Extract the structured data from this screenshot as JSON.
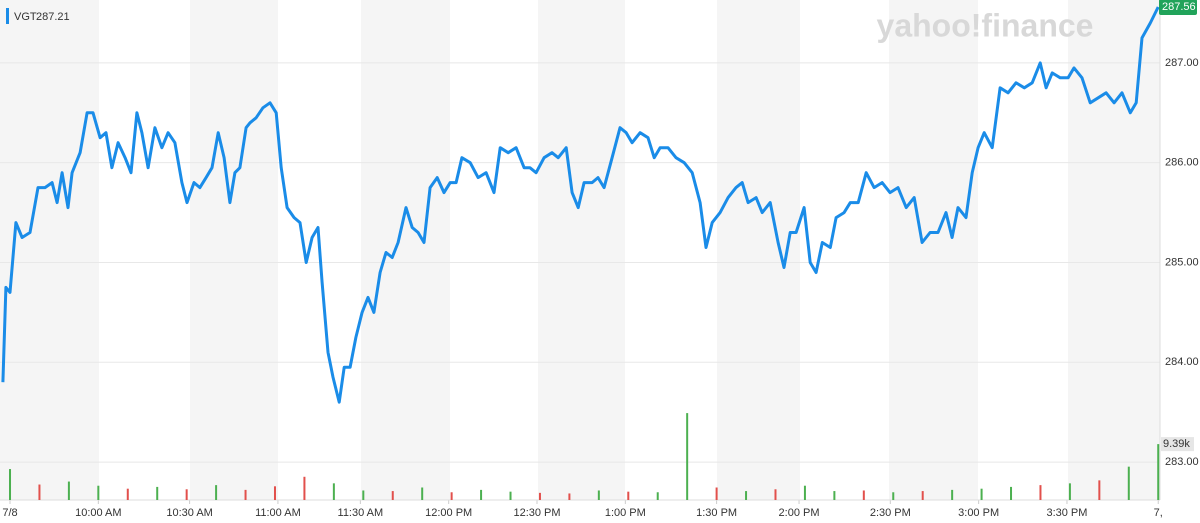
{
  "chart_data": {
    "type": "line",
    "watermark": "yahoo!finance",
    "legend_value": 287.21,
    "xlim": [
      -3.4,
      390.6
    ],
    "ylim": [
      282.62,
      287.63
    ],
    "xticks": [
      {
        "value": 0,
        "label": "7/8"
      },
      {
        "value": 30,
        "label": "10:00 AM"
      },
      {
        "value": 61,
        "label": "10:30 AM"
      },
      {
        "value": 91,
        "label": "11:00 AM"
      },
      {
        "value": 119,
        "label": "11:30 AM"
      },
      {
        "value": 149,
        "label": "12:00 PM"
      },
      {
        "value": 179,
        "label": "12:30 PM"
      },
      {
        "value": 209,
        "label": "1:00 PM"
      },
      {
        "value": 240,
        "label": "1:30 PM"
      },
      {
        "value": 268,
        "label": "2:00 PM"
      },
      {
        "value": 299,
        "label": "2:30 PM"
      },
      {
        "value": 329,
        "label": "3:00 PM"
      },
      {
        "value": 359,
        "label": "3:30 PM"
      },
      {
        "value": 390,
        "label": "7,"
      }
    ],
    "yticks": [
      {
        "value": 283,
        "label": "283.00"
      },
      {
        "value": 284,
        "label": "284.00"
      },
      {
        "value": 285,
        "label": "285.00"
      },
      {
        "value": 286,
        "label": "286.00"
      },
      {
        "value": 287,
        "label": "287.00"
      }
    ],
    "grid": true,
    "series": [
      {
        "name": "VGT",
        "color": "#1a8ce8",
        "x": [
          -2.4,
          -1.4,
          0,
          2,
          4.1,
          6.8,
          9.5,
          11.9,
          14.3,
          16,
          17.7,
          19.7,
          21.1,
          23.8,
          26.2,
          28.2,
          30.6,
          32.6,
          34.6,
          36.7,
          39.1,
          41.1,
          43.1,
          44.8,
          46.9,
          49.2,
          51.6,
          53.7,
          56,
          58.4,
          60.1,
          62.5,
          64.5,
          66.6,
          68.6,
          70.7,
          72.7,
          74.7,
          76.4,
          78.1,
          80.2,
          81.5,
          83.6,
          85.9,
          88.3,
          90.4,
          92.1,
          94.1,
          96.5,
          98.5,
          100.6,
          102.6,
          104.6,
          106,
          108,
          109.7,
          111.8,
          113.5,
          115.5,
          117.5,
          119.6,
          121.6,
          123.6,
          125.7,
          127.7,
          129.8,
          131.8,
          134.5,
          136.6,
          138.6,
          140.6,
          142.7,
          145.1,
          147.4,
          149.5,
          151.5,
          153.5,
          156.3,
          159,
          161.7,
          164.4,
          166.5,
          169.2,
          171.9,
          174.6,
          176.6,
          178.7,
          181.4,
          184.1,
          186.2,
          188.9,
          190.9,
          193,
          195,
          197.7,
          199.7,
          201.8,
          204.5,
          207.2,
          209.3,
          211.3,
          214,
          216.7,
          218.8,
          220.8,
          223.5,
          226.2,
          229,
          231.7,
          234.4,
          236.4,
          238.5,
          241.2,
          243.9,
          246.6,
          248.7,
          250.7,
          253.4,
          255.5,
          258.2,
          260.9,
          262.9,
          265,
          267,
          269.7,
          271.8,
          273.8,
          275.9,
          278.6,
          280.6,
          283.3,
          285.4,
          288.1,
          290.8,
          293.5,
          296.2,
          298.9,
          301.6,
          304.4,
          307.1,
          309.8,
          312.5,
          315.2,
          317.9,
          320,
          322,
          324.7,
          326.8,
          328.8,
          330.9,
          333.6,
          336.3,
          339,
          341.7,
          344.5,
          347.2,
          349.9,
          351.9,
          354,
          356.7,
          359.4,
          361.4,
          364.1,
          366.9,
          369.6,
          372.3,
          375,
          377.7,
          380.5,
          382.5,
          384.5,
          387.3,
          390
        ],
        "values": [
          283.8,
          284.75,
          284.7,
          285.4,
          285.25,
          285.3,
          285.75,
          285.75,
          285.8,
          285.6,
          285.9,
          285.55,
          285.9,
          286.1,
          286.5,
          286.5,
          286.25,
          286.3,
          285.95,
          286.2,
          286.05,
          285.9,
          286.5,
          286.3,
          285.95,
          286.35,
          286.15,
          286.3,
          286.2,
          285.8,
          285.6,
          285.8,
          285.75,
          285.85,
          285.95,
          286.3,
          286.05,
          285.6,
          285.9,
          285.95,
          286.35,
          286.4,
          286.45,
          286.55,
          286.6,
          286.5,
          285.95,
          285.55,
          285.45,
          285.4,
          285.0,
          285.25,
          285.35,
          284.8,
          284.1,
          283.85,
          283.6,
          283.95,
          283.95,
          284.25,
          284.5,
          284.65,
          284.5,
          284.9,
          285.1,
          285.05,
          285.2,
          285.55,
          285.35,
          285.3,
          285.2,
          285.75,
          285.85,
          285.7,
          285.8,
          285.8,
          286.05,
          286.0,
          285.85,
          285.9,
          285.7,
          286.15,
          286.1,
          286.15,
          285.95,
          285.95,
          285.9,
          286.05,
          286.1,
          286.05,
          286.15,
          285.7,
          285.55,
          285.8,
          285.8,
          285.85,
          285.75,
          286.05,
          286.35,
          286.3,
          286.2,
          286.3,
          286.25,
          286.05,
          286.15,
          286.15,
          286.05,
          286.0,
          285.9,
          285.6,
          285.15,
          285.4,
          285.5,
          285.65,
          285.75,
          285.8,
          285.6,
          285.65,
          285.5,
          285.6,
          285.2,
          284.95,
          285.3,
          285.3,
          285.55,
          285.0,
          284.9,
          285.2,
          285.15,
          285.45,
          285.5,
          285.6,
          285.6,
          285.9,
          285.75,
          285.8,
          285.7,
          285.75,
          285.55,
          285.65,
          285.2,
          285.3,
          285.3,
          285.5,
          285.25,
          285.55,
          285.45,
          285.9,
          286.15,
          286.3,
          286.15,
          286.75,
          286.7,
          286.8,
          286.75,
          286.8,
          287.0,
          286.75,
          286.9,
          286.85,
          286.85,
          286.95,
          286.85,
          286.6,
          286.65,
          286.7,
          286.6,
          286.7,
          286.5,
          286.6,
          287.25,
          287.4,
          287.56
        ]
      }
    ],
    "volume": {
      "ylim": [
        0,
        84000
      ],
      "label": {
        "value": 9390,
        "label": "9.39k"
      },
      "x": [
        0,
        10,
        20,
        30,
        40,
        50,
        60,
        70,
        80,
        90,
        100,
        110,
        120,
        130,
        140,
        150,
        160,
        170,
        180,
        190,
        200,
        210,
        220,
        230,
        240,
        250,
        260,
        270,
        280,
        290,
        300,
        310,
        320,
        330,
        340,
        350,
        360,
        370,
        380,
        390
      ],
      "values": [
        5200,
        2600,
        3100,
        2400,
        1900,
        2200,
        1800,
        2500,
        1700,
        2300,
        3900,
        2800,
        1600,
        1500,
        2100,
        1300,
        1700,
        1400,
        1200,
        1100,
        1600,
        1400,
        1300,
        14600,
        2100,
        1500,
        1800,
        2400,
        1500,
        1600,
        1300,
        1500,
        1700,
        1900,
        2200,
        2500,
        2800,
        3300,
        5600,
        9390
      ],
      "colors": [
        "#4cb050",
        "#e2504c",
        "#4cb050",
        "#4cb050",
        "#e2504c",
        "#4cb050",
        "#e2504c",
        "#4cb050",
        "#e2504c",
        "#e2504c",
        "#e2504c",
        "#4cb050",
        "#4cb050",
        "#e2504c",
        "#4cb050",
        "#e2504c",
        "#4cb050",
        "#4cb050",
        "#e2504c",
        "#e2504c",
        "#4cb050",
        "#e2504c",
        "#4cb050",
        "#4cb050",
        "#e2504c",
        "#4cb050",
        "#e2504c",
        "#4cb050",
        "#4cb050",
        "#e2504c",
        "#4cb050",
        "#e2504c",
        "#4cb050",
        "#4cb050",
        "#4cb050",
        "#e2504c",
        "#4cb050",
        "#e2504c",
        "#4cb050",
        "#4cb050"
      ]
    }
  }
}
